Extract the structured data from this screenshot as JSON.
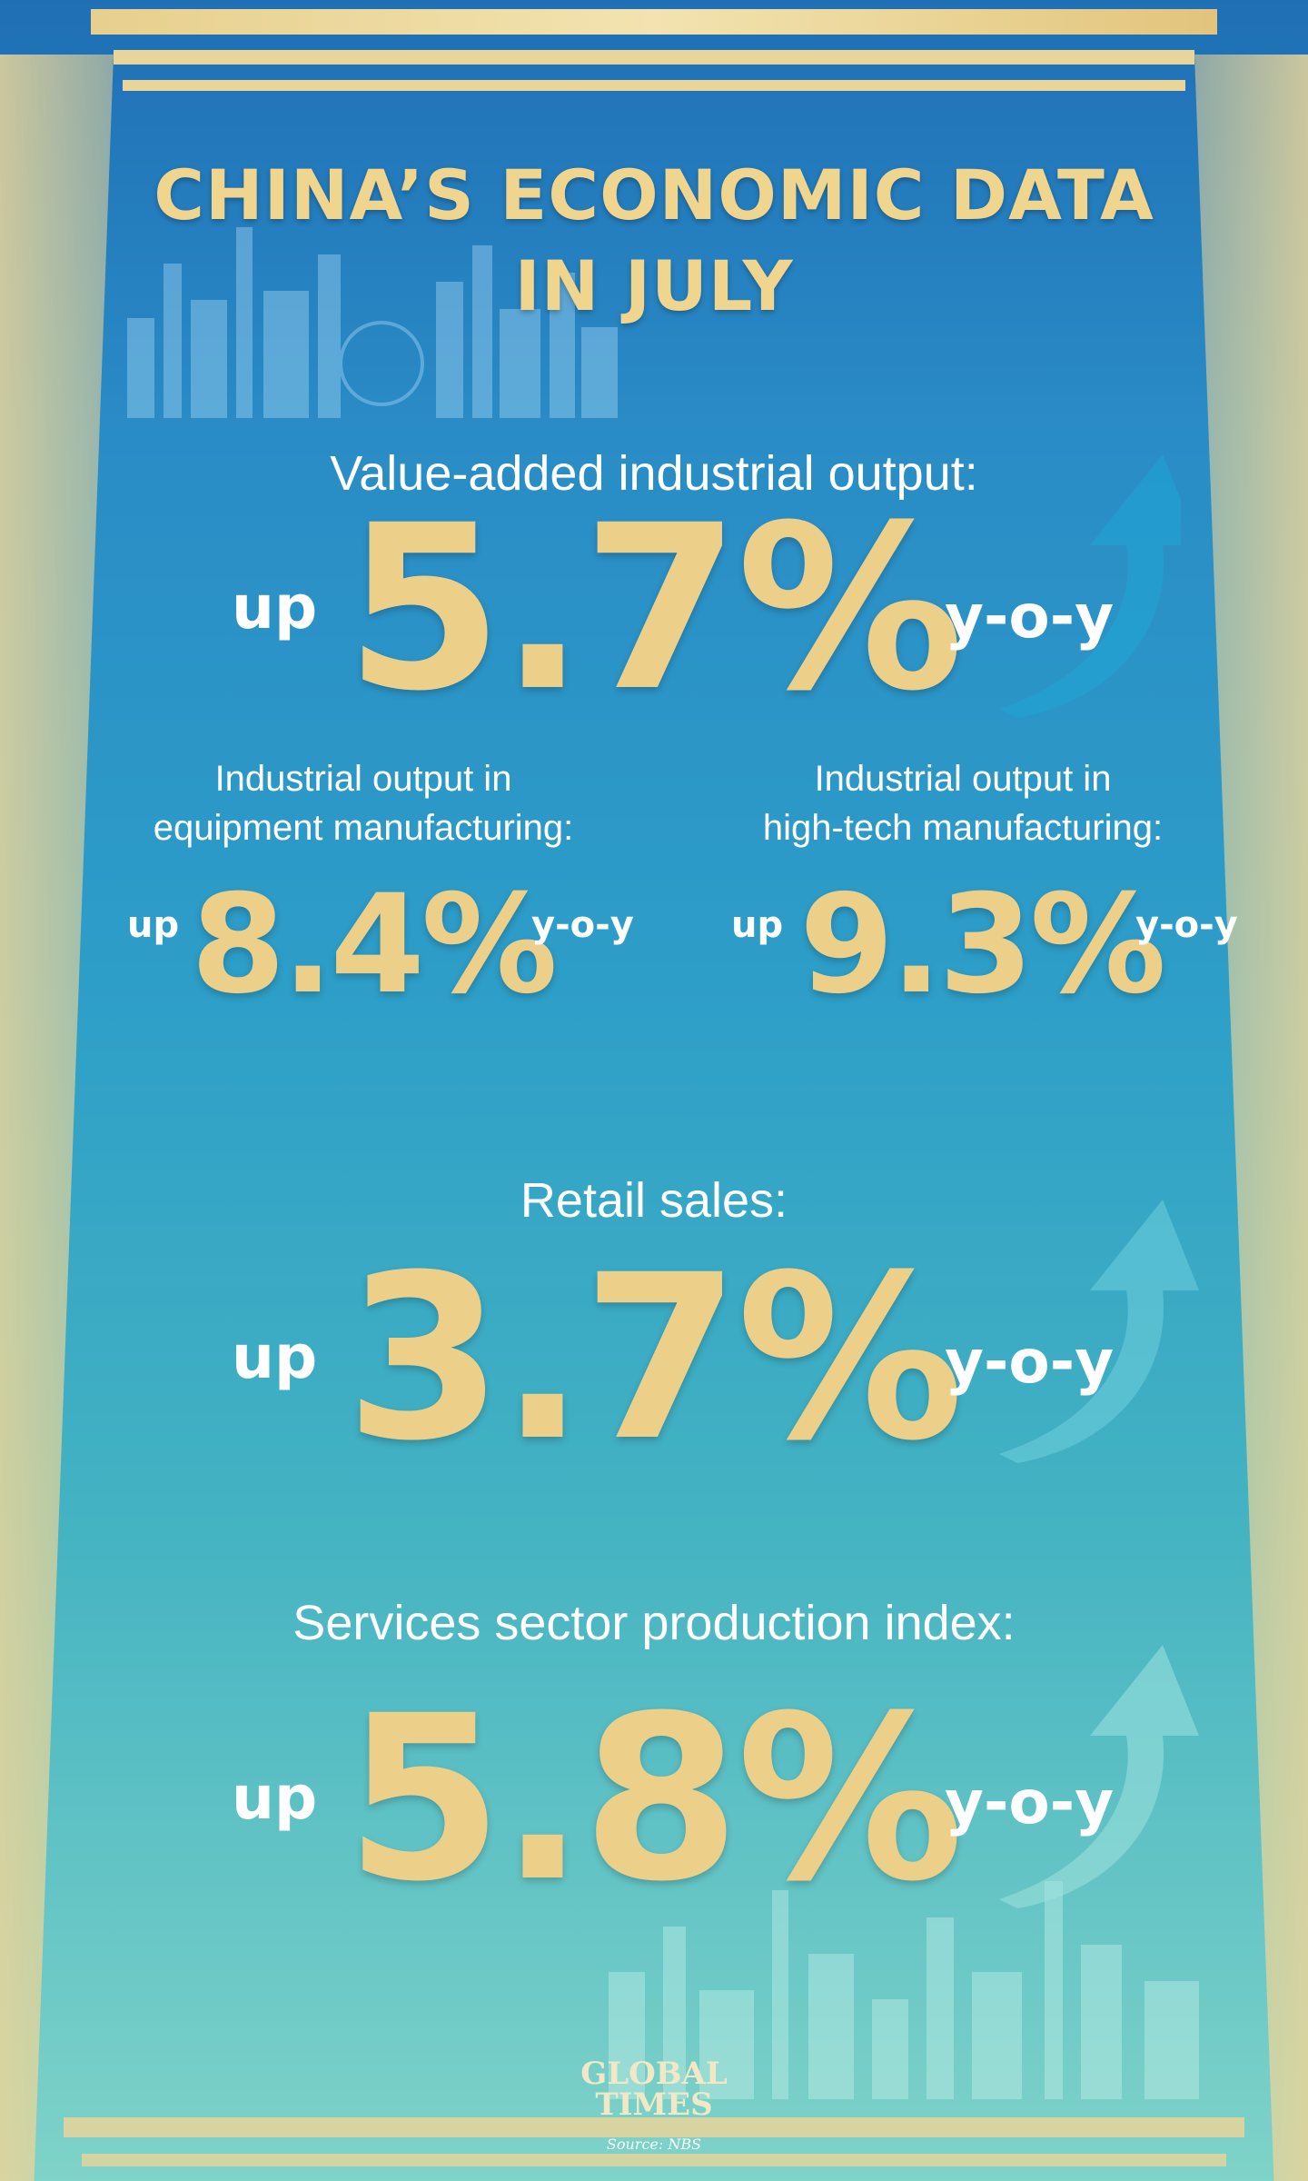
{
  "title_line1": "CHINA’S ECONOMIC DATA",
  "title_line2": "IN JULY",
  "industrial": {
    "label": "Value-added industrial output:",
    "up": "up",
    "value": "5.7%",
    "yoy": "y-o-y"
  },
  "equipment": {
    "label_line1": "Industrial output in",
    "label_line2": "equipment manufacturing:",
    "up": "up",
    "value": "8.4%",
    "yoy": "y-o-y"
  },
  "hightech": {
    "label_line1": "Industrial output in",
    "label_line2": "high-tech manufacturing:",
    "up": "up",
    "value": "9.3%",
    "yoy": "y-o-y"
  },
  "retail": {
    "label": "Retail sales:",
    "up": "up",
    "value": "3.7%",
    "yoy": "y-o-y"
  },
  "services": {
    "label": "Services sector production index:",
    "up": "up",
    "value": "5.8%",
    "yoy": "y-o-y"
  },
  "logo": {
    "line1": "GLOBAL",
    "line2": "TIMES"
  },
  "source": "Source: NBS",
  "colors": {
    "gold": "#ecd08a",
    "frame": "#e9d59a",
    "white": "#ffffff"
  },
  "icons": [
    "arrow-up-icon",
    "skyline-graphic"
  ]
}
